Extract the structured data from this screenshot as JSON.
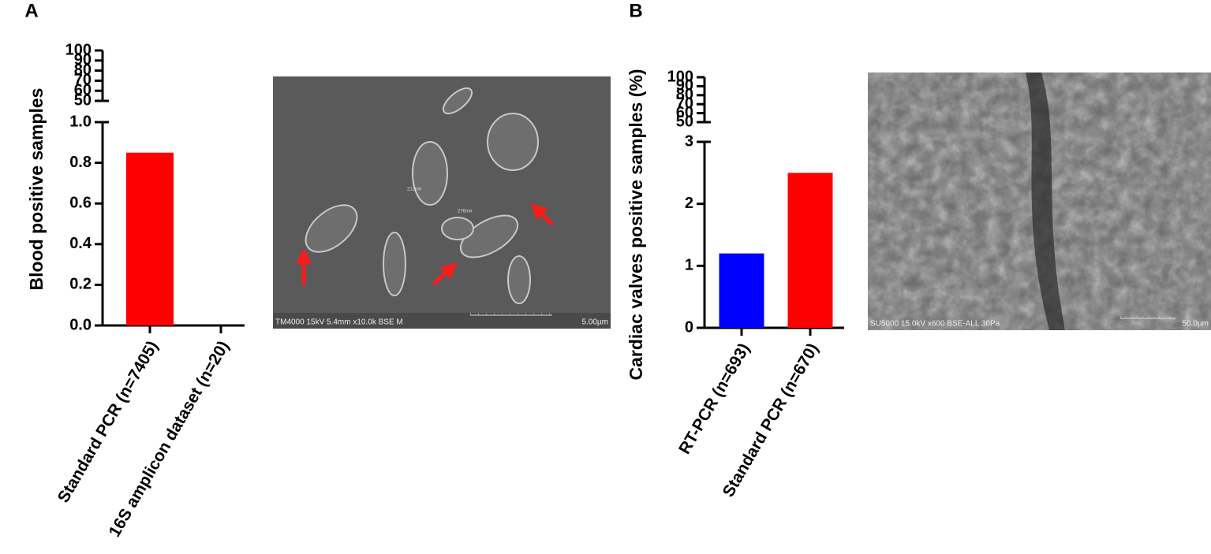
{
  "chart_data": [
    {
      "type": "bar",
      "panel": "A",
      "y_label": "Blood positive samples",
      "categories": [
        "Standard PCR (n=7405)",
        "16S amplicon dataset (n=20)"
      ],
      "values": [
        0.85,
        0
      ],
      "colors": [
        "#ff0000",
        "#ff0000"
      ],
      "ylim": [
        0,
        1
      ],
      "yticks": [
        {
          "value": 0,
          "label": "0.0"
        },
        {
          "value": 0.2,
          "label": "0.2"
        },
        {
          "value": 0.4,
          "label": "0.4"
        },
        {
          "value": 0.6,
          "label": "0.6"
        },
        {
          "value": 0.8,
          "label": "0.8"
        },
        {
          "value": 1,
          "label": "1.0"
        }
      ],
      "y_break": {
        "ylim": [
          50,
          100
        ],
        "yticks": [
          50,
          60,
          70,
          80,
          90,
          100
        ]
      },
      "micrograph": {
        "info": "TM4000 15kV 5.4mm x10.0k BSE M",
        "scale_bar": "5.00µm",
        "measurements": [
          "212nm",
          "276nm"
        ]
      }
    },
    {
      "type": "bar",
      "panel": "B",
      "y_label": "Cardiac valves positive samples (%)",
      "categories": [
        "RT-PCR (n=693)",
        "Standard PCR (n=670)"
      ],
      "values": [
        1.2,
        2.5
      ],
      "colors": [
        "#0000ff",
        "#ff0000"
      ],
      "ylim": [
        0,
        3
      ],
      "yticks": [
        0,
        1,
        2,
        3
      ],
      "y_break": {
        "ylim": [
          50,
          100
        ],
        "yticks": [
          50,
          60,
          70,
          80,
          90,
          100
        ]
      },
      "micrograph": {
        "info": "SU5000 15.0kV x600 BSE-ALL 30Pa",
        "scale_bar": "50.0µm",
        "measurements": []
      }
    }
  ]
}
